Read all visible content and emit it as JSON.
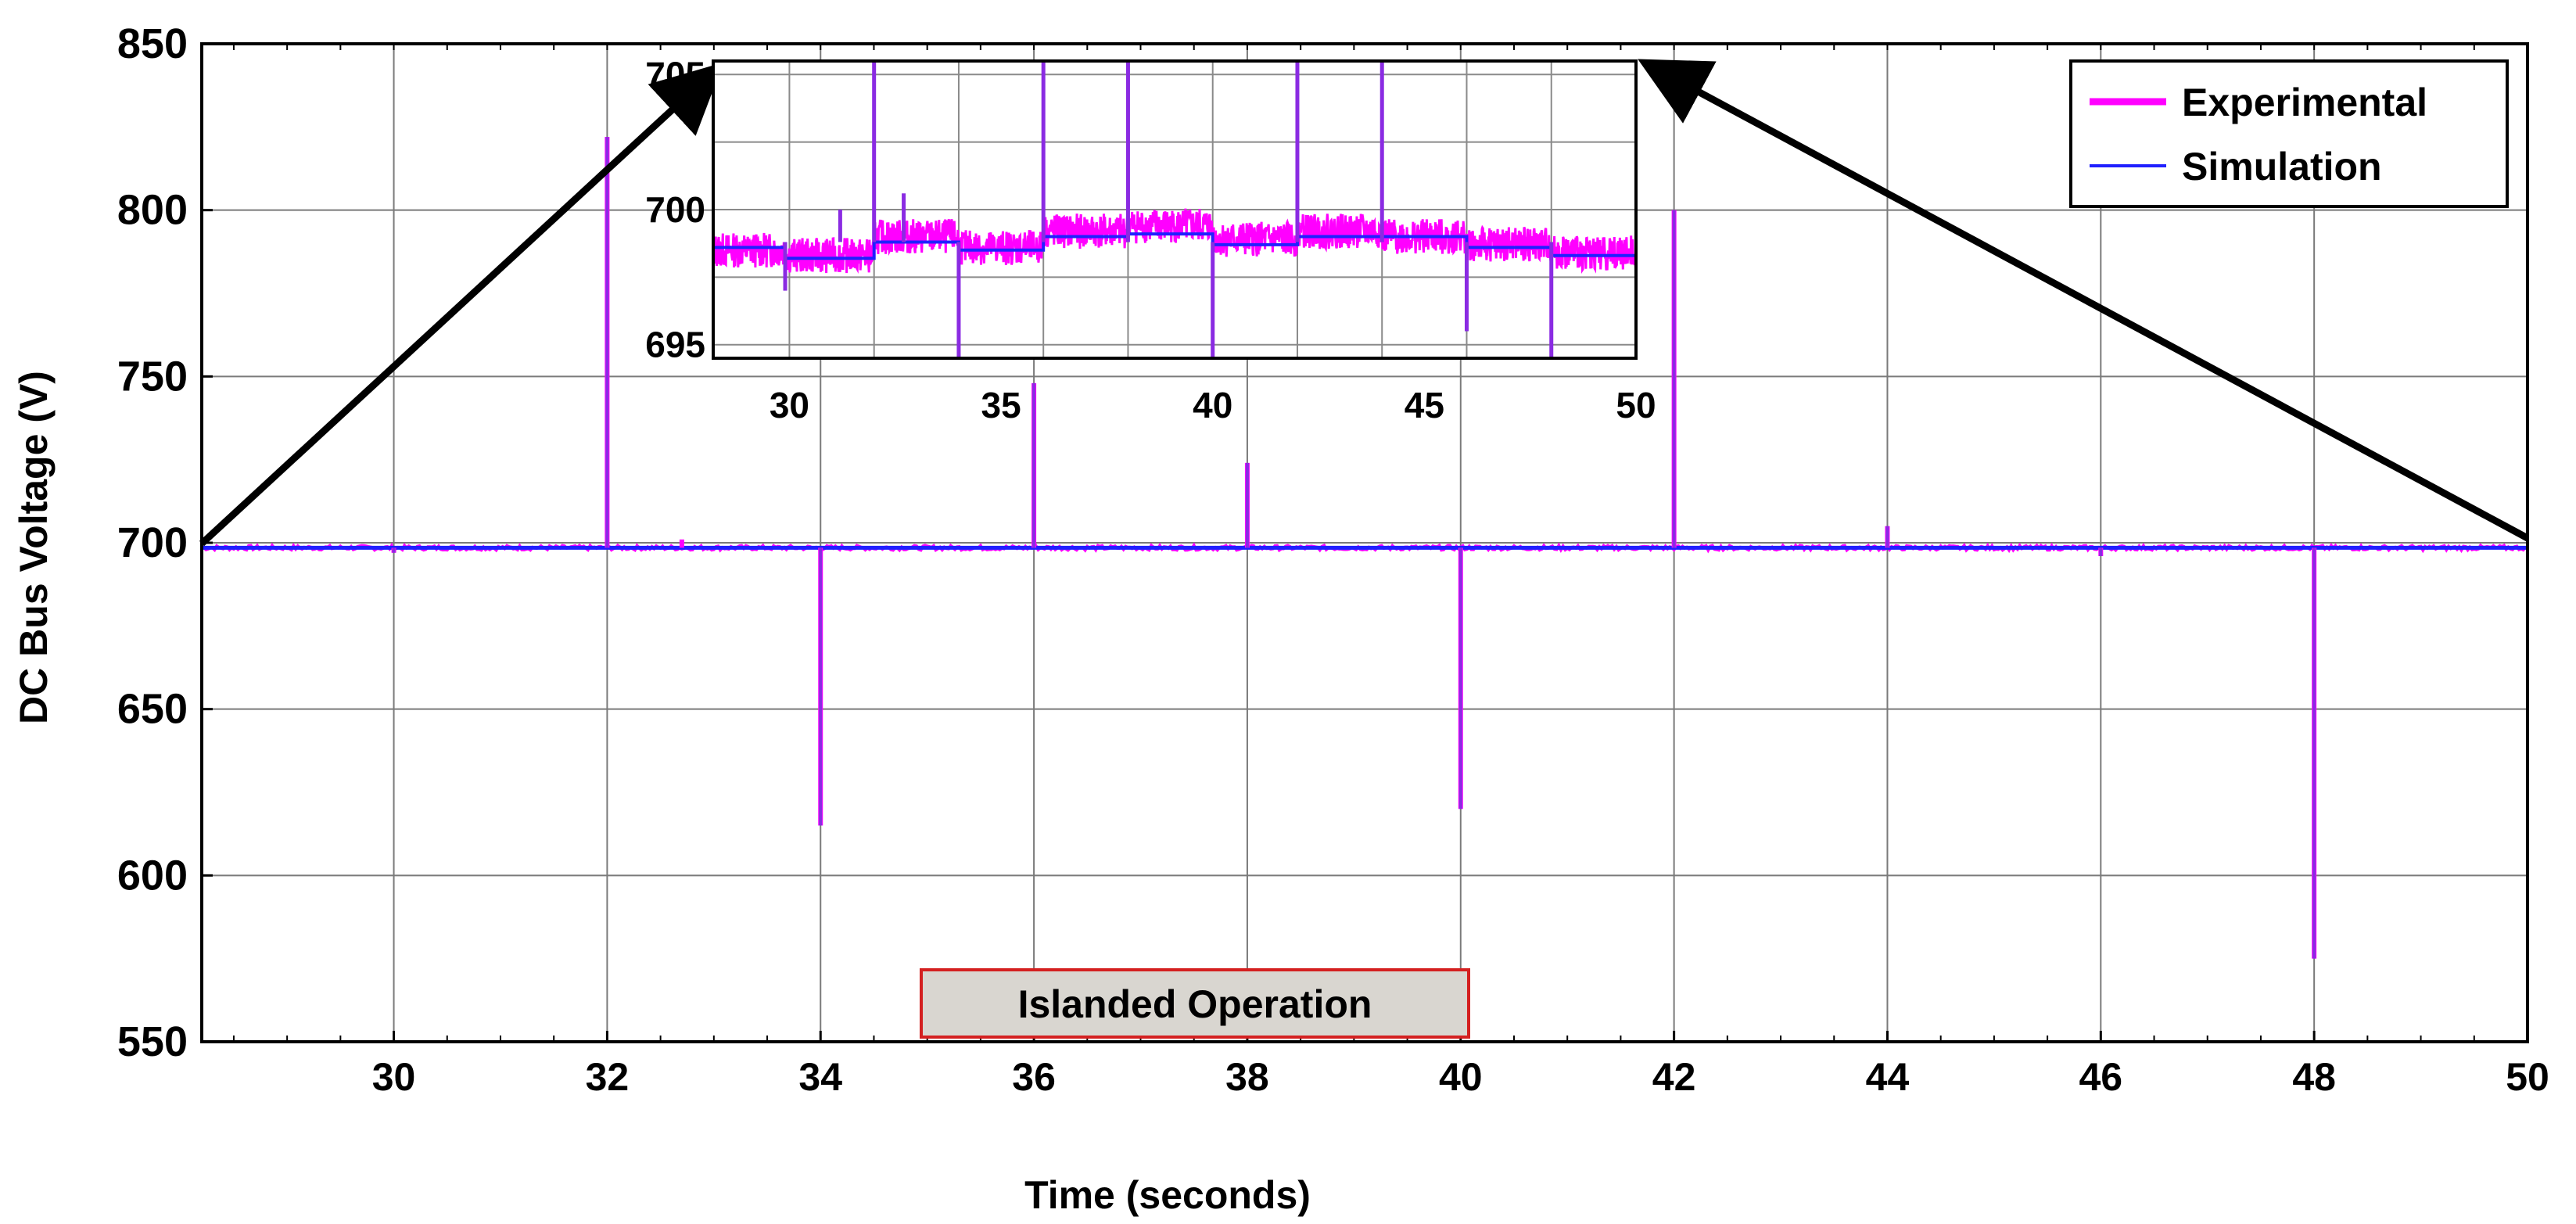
{
  "chart_data": {
    "type": "line",
    "title": "",
    "xlabel": "Time (seconds)",
    "ylabel": "DC Bus Voltage (V)",
    "xlim": [
      28.2,
      50
    ],
    "ylim": [
      550,
      850
    ],
    "xticks": [
      30,
      32,
      34,
      36,
      38,
      40,
      42,
      44,
      46,
      48,
      50
    ],
    "yticks": [
      550,
      600,
      650,
      700,
      750,
      800,
      850
    ],
    "grid": true,
    "legend_position": "top-right",
    "colors": {
      "experimental": "#ff00ff",
      "simulation": "#2020ff",
      "overlap": "#8a2be2"
    },
    "series": [
      {
        "name": "Experimental",
        "baseline": 698.5,
        "events": [
          {
            "x": 30,
            "y": 697
          },
          {
            "x": 32,
            "y": 822
          },
          {
            "x": 32.7,
            "y": 701
          },
          {
            "x": 34,
            "y": 615
          },
          {
            "x": 36,
            "y": 748
          },
          {
            "x": 38,
            "y": 724
          },
          {
            "x": 40,
            "y": 620
          },
          {
            "x": 42,
            "y": 800
          },
          {
            "x": 44,
            "y": 705
          },
          {
            "x": 46,
            "y": 696
          },
          {
            "x": 48,
            "y": 575
          }
        ]
      },
      {
        "name": "Simulation",
        "baseline": 698.5,
        "events": [
          {
            "x": 30,
            "y": 697
          },
          {
            "x": 32,
            "y": 822
          },
          {
            "x": 34,
            "y": 615
          },
          {
            "x": 36,
            "y": 748
          },
          {
            "x": 38,
            "y": 724
          },
          {
            "x": 40,
            "y": 620
          },
          {
            "x": 42,
            "y": 800
          },
          {
            "x": 44,
            "y": 705
          },
          {
            "x": 46,
            "y": 696
          },
          {
            "x": 48,
            "y": 575
          }
        ]
      }
    ],
    "inset": {
      "xlim": [
        28.2,
        50
      ],
      "ylim": [
        694.5,
        705.5
      ],
      "xticks": [
        30,
        35,
        40,
        45,
        50
      ],
      "yticks": [
        695,
        700,
        705
      ],
      "grid": true,
      "experimental_levels": [
        {
          "x0": 28.2,
          "x1": 29.9,
          "y": 698.5
        },
        {
          "x0": 29.9,
          "y": 698.3,
          "x1": 32
        },
        {
          "x0": 32,
          "x1": 34,
          "y": 699.0
        },
        {
          "x0": 34,
          "x1": 36,
          "y": 698.6
        },
        {
          "x0": 36,
          "x1": 38,
          "y": 699.2
        },
        {
          "x0": 38,
          "x1": 40,
          "y": 699.4
        },
        {
          "x0": 40,
          "x1": 42,
          "y": 698.9
        },
        {
          "x0": 42,
          "x1": 44,
          "y": 699.2
        },
        {
          "x0": 44,
          "x1": 46,
          "y": 699.0
        },
        {
          "x0": 46,
          "x1": 48,
          "y": 698.7
        },
        {
          "x0": 48,
          "x1": 50,
          "y": 698.4
        }
      ],
      "simulation_levels": [
        {
          "x0": 28.2,
          "x1": 29.9,
          "y": 698.6
        },
        {
          "x0": 29.9,
          "x1": 32,
          "y": 698.2
        },
        {
          "x0": 32,
          "x1": 34,
          "y": 698.8
        },
        {
          "x0": 34,
          "x1": 36,
          "y": 698.5
        },
        {
          "x0": 36,
          "x1": 38,
          "y": 699.0
        },
        {
          "x0": 38,
          "x1": 40,
          "y": 699.1
        },
        {
          "x0": 40,
          "x1": 42,
          "y": 698.7
        },
        {
          "x0": 42,
          "x1": 44,
          "y": 699.0
        },
        {
          "x0": 44,
          "x1": 46,
          "y": 699.0
        },
        {
          "x0": 46,
          "x1": 48,
          "y": 698.6
        },
        {
          "x0": 48,
          "x1": 50,
          "y": 698.3
        }
      ],
      "spikes": [
        {
          "x": 29.9,
          "y": 697.0
        },
        {
          "x": 31.2,
          "y": 700.0
        },
        {
          "x": 32,
          "y": 705.5
        },
        {
          "x": 32.7,
          "y": 700.6
        },
        {
          "x": 34,
          "y": 694.5
        },
        {
          "x": 36,
          "y": 705.5
        },
        {
          "x": 38,
          "y": 705.5
        },
        {
          "x": 40,
          "y": 694.5
        },
        {
          "x": 42,
          "y": 705.5
        },
        {
          "x": 44,
          "y": 705.5
        },
        {
          "x": 46,
          "y": 695.5
        },
        {
          "x": 48,
          "y": 694.5
        }
      ]
    },
    "annotation": "Islanded Operation"
  }
}
